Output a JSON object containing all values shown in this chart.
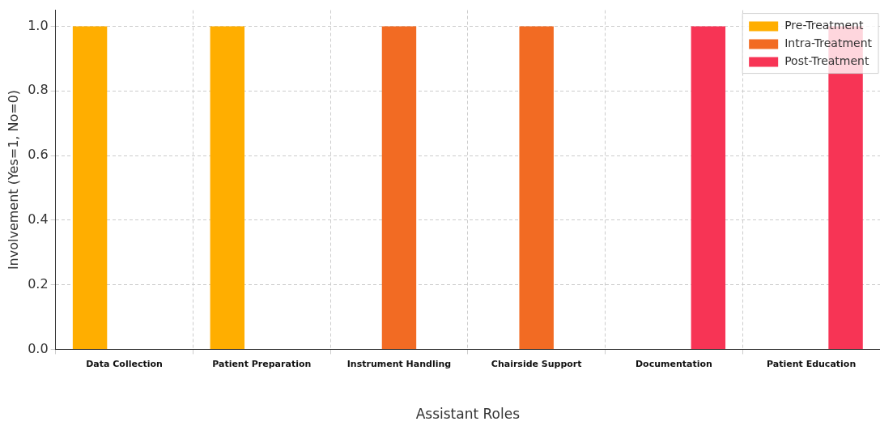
{
  "chart_data": {
    "type": "bar",
    "xlabel": "Assistant Roles",
    "ylabel": "Involvement (Yes=1, No=0)",
    "categories": [
      "Data Collection",
      "Patient Preparation",
      "Instrument Handling",
      "Chairside Support",
      "Documentation",
      "Patient Education"
    ],
    "series": [
      {
        "name": "Pre-Treatment",
        "color": "#ffae00",
        "values": [
          1,
          1,
          0,
          0,
          0,
          0
        ]
      },
      {
        "name": "Intra-Treatment",
        "color": "#f26b23",
        "values": [
          0,
          0,
          1,
          1,
          0,
          0
        ]
      },
      {
        "name": "Post-Treatment",
        "color": "#f73455",
        "values": [
          0,
          0,
          0,
          0,
          1,
          1
        ]
      }
    ],
    "ylim": [
      0,
      1.05
    ],
    "yticks": [
      {
        "value": 0,
        "label": "0.0"
      },
      0.2,
      0.4,
      0.6,
      0.8,
      {
        "value": 1,
        "label": "1.0"
      }
    ],
    "grid": true,
    "legend": "top right"
  }
}
